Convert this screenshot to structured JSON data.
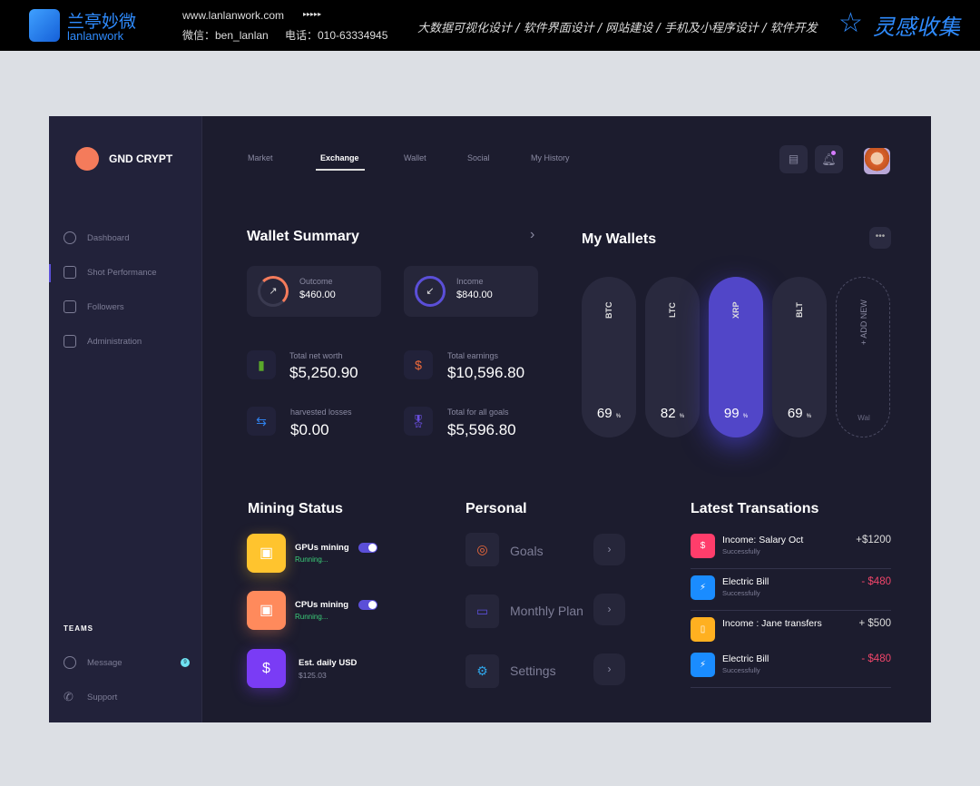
{
  "banner": {
    "brand_cn": "兰亭妙微",
    "brand_en": "lanlanwork",
    "website": "www.lanlanwork.com",
    "arrows": "▸▸▸▸▸",
    "wechat": "微信：ben_lanlan",
    "phone": "电话：010-63334945",
    "services": "大数据可视化设计 / 软件界面设计 / 网站建设 / 手机及小程序设计 / 软件开发",
    "right_title": "灵感收集"
  },
  "app": {
    "name": "GND CRYPT"
  },
  "sidebar": {
    "items": [
      {
        "label": "Dashboard",
        "icon": "grid-icon"
      },
      {
        "label": "Shot Performance",
        "icon": "bar-chart-icon"
      },
      {
        "label": "Followers",
        "icon": "list-icon"
      },
      {
        "label": "Administration",
        "icon": "table-icon"
      }
    ],
    "teams_heading": "TEAMS",
    "team_items": [
      {
        "label": "Message",
        "icon": "chat-icon",
        "badge": "9"
      },
      {
        "label": "Support",
        "icon": "phone-icon"
      }
    ]
  },
  "tabs": [
    {
      "label": "Market"
    },
    {
      "label": "Exchange",
      "active": true
    },
    {
      "label": "Wallet"
    },
    {
      "label": "Social"
    },
    {
      "label": "My History"
    }
  ],
  "wallet_summary": {
    "title": "Wallet Summary",
    "outcome": {
      "label": "Outcome",
      "value": "$460.00"
    },
    "income": {
      "label": "Income",
      "value": "$840.00"
    },
    "stats": [
      {
        "label": "Total net worth",
        "value": "$5,250.90"
      },
      {
        "label": "Total earnings",
        "value": "$10,596.80"
      },
      {
        "label": "harvested losses",
        "value": "$0.00"
      },
      {
        "label": "Total for all goals",
        "value": "$5,596.80"
      }
    ]
  },
  "my_wallets": {
    "title": "My Wallets",
    "wallets": [
      {
        "name": "BTC",
        "percent": "69",
        "unit": "%"
      },
      {
        "name": "LTC",
        "percent": "82",
        "unit": "%"
      },
      {
        "name": "XRP",
        "percent": "99",
        "unit": "%",
        "active": true
      },
      {
        "name": "BLT",
        "percent": "69",
        "unit": "%"
      }
    ],
    "add_new": "+ ADD NEW",
    "add_sub": "Wal"
  },
  "mining": {
    "title": "Mining Status",
    "items": [
      {
        "name": "GPUs mining",
        "status": "Running...",
        "on": true
      },
      {
        "name": "CPUs mining",
        "status": "Running...",
        "on": true
      },
      {
        "name": "Est. daily USD",
        "status": "$125.03"
      }
    ]
  },
  "personal": {
    "title": "Personal",
    "items": [
      {
        "label": "Goals"
      },
      {
        "label": "Monthly Plan"
      },
      {
        "label": "Settings"
      }
    ]
  },
  "transactions": {
    "title": "Latest Transations",
    "items": [
      {
        "name": "Income: Salary Oct",
        "status": "Successfully",
        "amount": "+$1200",
        "color": "#ff3d6b"
      },
      {
        "name": "Electric Bill",
        "status": "Successfully",
        "amount": "- $480",
        "color": "#1a8cff"
      },
      {
        "name": "Income : Jane transfers",
        "status": "",
        "amount": "+ $500",
        "color": "#ffb020"
      },
      {
        "name": "Electric Bill",
        "status": "Successfully",
        "amount": "- $480",
        "color": "#1a8cff"
      }
    ]
  },
  "colors": {
    "accent": "#5b4fd8",
    "brand": "#f47b5b",
    "negative": "#f0456a",
    "positive": "#3ccf7a"
  }
}
